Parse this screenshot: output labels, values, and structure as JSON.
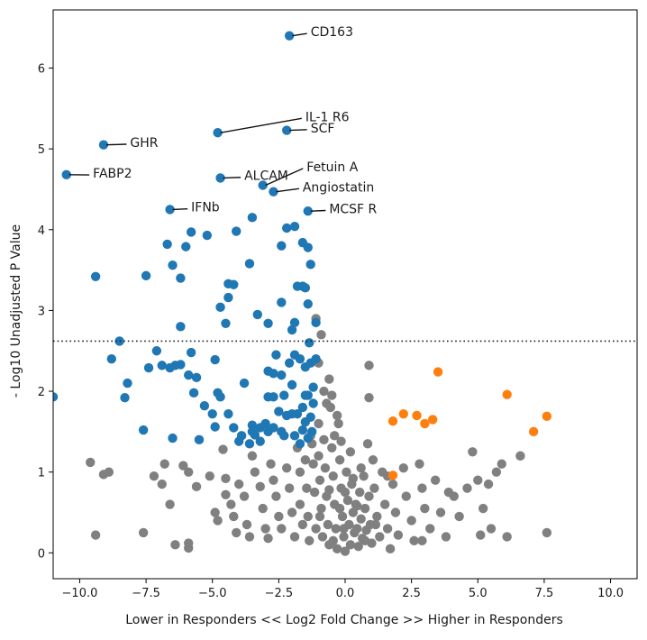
{
  "chart_data": {
    "type": "scatter",
    "title": "",
    "xlabel": "Lower in Responders << Log2 Fold Change >> Higher in Responders",
    "ylabel": "- Log10 Unadjusted P Value",
    "xlim": [
      -11,
      11
    ],
    "ylim": [
      -0.32,
      6.72
    ],
    "xticks": [
      -10,
      -7.5,
      -5,
      -2.5,
      0,
      2.5,
      5,
      7.5,
      10
    ],
    "xtick_labels": [
      "−10.0",
      "−7.5",
      "−5.0",
      "−2.5",
      "0.0",
      "2.5",
      "5.0",
      "7.5",
      "10.0"
    ],
    "yticks": [
      0,
      1,
      2,
      3,
      4,
      5,
      6
    ],
    "ytick_labels": [
      "0",
      "1",
      "2",
      "3",
      "4",
      "5",
      "6"
    ],
    "grid": false,
    "legend": null,
    "threshold_line": {
      "y": 2.62,
      "style": "dotted",
      "color": "#222222"
    },
    "colors": {
      "down": "#1f77b4",
      "up": "#ff7f0e",
      "ns": "#808080"
    },
    "series": [
      {
        "name": "ns",
        "color": "#808080",
        "points": [
          [
            -9.6,
            1.12
          ],
          [
            -9.1,
            0.97
          ],
          [
            -8.9,
            1.0
          ],
          [
            -9.4,
            0.22
          ],
          [
            -7.6,
            0.25
          ],
          [
            -7.2,
            0.95
          ],
          [
            -6.9,
            0.85
          ],
          [
            -6.8,
            1.1
          ],
          [
            -6.6,
            0.6
          ],
          [
            -6.4,
            0.1
          ],
          [
            -6.1,
            1.08
          ],
          [
            -5.9,
            1.0
          ],
          [
            -5.9,
            0.12
          ],
          [
            -5.9,
            0.06
          ],
          [
            -5.6,
            0.82
          ],
          [
            -5.1,
            0.95
          ],
          [
            -4.9,
            0.5
          ],
          [
            -4.8,
            0.4
          ],
          [
            -4.6,
            1.28
          ],
          [
            -4.5,
            0.92
          ],
          [
            -4.5,
            0.72
          ],
          [
            -4.3,
            0.6
          ],
          [
            -4.2,
            0.45
          ],
          [
            -4.1,
            0.25
          ],
          [
            -4.0,
            0.85
          ],
          [
            -3.8,
            0.7
          ],
          [
            -3.7,
            0.35
          ],
          [
            -3.6,
            0.2
          ],
          [
            -3.5,
            1.2
          ],
          [
            -3.4,
            1.0
          ],
          [
            -3.2,
            0.82
          ],
          [
            -3.1,
            0.55
          ],
          [
            -3.0,
            0.3
          ],
          [
            -2.9,
            0.18
          ],
          [
            -2.8,
            1.1
          ],
          [
            -2.7,
            0.9
          ],
          [
            -2.6,
            0.7
          ],
          [
            -2.5,
            0.45
          ],
          [
            -2.4,
            0.3
          ],
          [
            -2.2,
            1.05
          ],
          [
            -2.1,
            0.8
          ],
          [
            -2.0,
            0.5
          ],
          [
            -1.9,
            0.2
          ],
          [
            -1.8,
            1.3
          ],
          [
            -1.7,
            1.0
          ],
          [
            -1.7,
            0.6
          ],
          [
            -1.6,
            0.35
          ],
          [
            -1.5,
            1.15
          ],
          [
            -1.45,
            0.8
          ],
          [
            -1.4,
            0.45
          ],
          [
            -1.35,
            0.15
          ],
          [
            -1.3,
            1.45
          ],
          [
            -1.2,
            1.1
          ],
          [
            -1.15,
            0.75
          ],
          [
            -1.1,
            0.3
          ],
          [
            -1.0,
            1.6
          ],
          [
            -1.0,
            1.2
          ],
          [
            -0.95,
            0.9
          ],
          [
            -0.9,
            0.55
          ],
          [
            -0.85,
            0.2
          ],
          [
            -0.8,
            2.0
          ],
          [
            -0.8,
            1.4
          ],
          [
            -0.75,
            1.05
          ],
          [
            -0.7,
            0.7
          ],
          [
            -0.65,
            0.35
          ],
          [
            -0.6,
            0.1
          ],
          [
            -0.55,
            1.8
          ],
          [
            -0.5,
            1.3
          ],
          [
            -0.45,
            0.95
          ],
          [
            -0.4,
            0.6
          ],
          [
            -0.35,
            0.3
          ],
          [
            -0.3,
            0.05
          ],
          [
            -0.25,
            1.6
          ],
          [
            -0.2,
            1.15
          ],
          [
            -0.15,
            0.8
          ],
          [
            -0.1,
            0.45
          ],
          [
            -0.05,
            0.2
          ],
          [
            0.0,
            0.02
          ],
          [
            0.05,
            1.0
          ],
          [
            0.1,
            0.65
          ],
          [
            0.15,
            0.35
          ],
          [
            0.2,
            0.1
          ],
          [
            0.25,
            0.85
          ],
          [
            0.3,
            0.5
          ],
          [
            0.35,
            0.25
          ],
          [
            0.4,
            0.6
          ],
          [
            0.45,
            0.3
          ],
          [
            0.5,
            0.08
          ],
          [
            0.55,
            0.75
          ],
          [
            0.6,
            0.42
          ],
          [
            0.65,
            0.18
          ],
          [
            0.7,
            0.95
          ],
          [
            0.75,
            0.55
          ],
          [
            0.8,
            0.28
          ],
          [
            0.85,
            1.35
          ],
          [
            0.9,
            0.7
          ],
          [
            0.95,
            0.35
          ],
          [
            1.0,
            0.12
          ],
          [
            1.05,
            1.15
          ],
          [
            1.1,
            0.8
          ],
          [
            1.2,
            0.45
          ],
          [
            1.3,
            0.2
          ],
          [
            1.4,
            1.0
          ],
          [
            1.5,
            0.6
          ],
          [
            1.6,
            0.3
          ],
          [
            1.7,
            0.05
          ],
          [
            1.8,
            0.85
          ],
          [
            1.9,
            0.5
          ],
          [
            2.0,
            0.22
          ],
          [
            2.2,
            1.05
          ],
          [
            2.3,
            0.7
          ],
          [
            2.5,
            0.4
          ],
          [
            2.6,
            0.15
          ],
          [
            2.8,
            1.1
          ],
          [
            2.9,
            0.8
          ],
          [
            3.0,
            0.55
          ],
          [
            3.2,
            0.3
          ],
          [
            3.4,
            0.9
          ],
          [
            3.6,
            0.5
          ],
          [
            3.8,
            0.2
          ],
          [
            4.1,
            0.7
          ],
          [
            4.6,
            0.8
          ],
          [
            4.8,
            1.25
          ],
          [
            5.0,
            0.9
          ],
          [
            5.2,
            0.55
          ],
          [
            5.4,
            0.85
          ],
          [
            5.5,
            0.3
          ],
          [
            5.7,
            1.0
          ],
          [
            5.9,
            1.1
          ],
          [
            6.1,
            0.2
          ],
          [
            6.6,
            1.2
          ],
          [
            7.6,
            0.25
          ],
          [
            -1.0,
            2.35
          ],
          [
            -0.9,
            2.7
          ],
          [
            -1.1,
            2.9
          ],
          [
            -0.6,
            2.15
          ],
          [
            -0.3,
            1.7
          ],
          [
            -0.5,
            1.95
          ],
          [
            -0.7,
            1.85
          ],
          [
            -0.4,
            1.45
          ],
          [
            0.9,
            2.32
          ],
          [
            0.9,
            1.92
          ],
          [
            0.6,
            1.05
          ],
          [
            0.2,
            1.25
          ],
          [
            -0.15,
            1.38
          ],
          [
            0.3,
            0.92
          ],
          [
            0.0,
            0.75
          ],
          [
            -0.2,
            0.55
          ],
          [
            -0.6,
            0.78
          ],
          [
            1.15,
            0.35
          ],
          [
            0.75,
            0.15
          ],
          [
            -0.05,
            0.3
          ],
          [
            0.45,
            0.58
          ],
          [
            -0.45,
            0.15
          ],
          [
            -1.25,
            1.35
          ],
          [
            -0.95,
            0.45
          ],
          [
            1.6,
            0.95
          ],
          [
            2.9,
            0.15
          ],
          [
            3.9,
            0.75
          ],
          [
            4.3,
            0.45
          ],
          [
            5.1,
            0.22
          ]
        ]
      },
      {
        "name": "down",
        "color": "#1f77b4",
        "points": [
          [
            -2.1,
            6.4
          ],
          [
            -4.8,
            5.2
          ],
          [
            -2.2,
            5.23
          ],
          [
            -9.1,
            5.05
          ],
          [
            -10.5,
            4.68
          ],
          [
            -4.7,
            4.64
          ],
          [
            -3.1,
            4.55
          ],
          [
            -2.7,
            4.47
          ],
          [
            -6.6,
            4.25
          ],
          [
            -1.4,
            4.23
          ],
          [
            -11.0,
            1.93
          ],
          [
            -9.4,
            3.42
          ],
          [
            -7.5,
            3.43
          ],
          [
            -6.7,
            3.82
          ],
          [
            -6.5,
            3.56
          ],
          [
            -6.2,
            3.4
          ],
          [
            -5.8,
            3.97
          ],
          [
            -5.2,
            3.93
          ],
          [
            -4.1,
            3.98
          ],
          [
            -3.5,
            4.15
          ],
          [
            -2.2,
            4.02
          ],
          [
            -2.4,
            3.8
          ],
          [
            -1.9,
            4.04
          ],
          [
            -1.6,
            3.84
          ],
          [
            -1.4,
            3.78
          ],
          [
            -1.3,
            3.57
          ],
          [
            -6.0,
            3.79
          ],
          [
            -3.6,
            3.58
          ],
          [
            -4.4,
            3.33
          ],
          [
            -4.2,
            3.32
          ],
          [
            -4.4,
            3.16
          ],
          [
            -4.7,
            3.04
          ],
          [
            -4.5,
            2.84
          ],
          [
            -3.3,
            2.95
          ],
          [
            -2.9,
            2.84
          ],
          [
            -2.4,
            3.1
          ],
          [
            -1.8,
            3.3
          ],
          [
            -1.6,
            3.3
          ],
          [
            -1.5,
            3.28
          ],
          [
            -1.4,
            3.08
          ],
          [
            -1.9,
            2.85
          ],
          [
            -2.0,
            2.76
          ],
          [
            -1.1,
            2.85
          ],
          [
            -6.2,
            2.8
          ],
          [
            -8.5,
            2.62
          ],
          [
            -8.8,
            2.4
          ],
          [
            -8.2,
            2.1
          ],
          [
            -8.3,
            1.92
          ],
          [
            -7.4,
            2.29
          ],
          [
            -7.1,
            2.5
          ],
          [
            -6.9,
            2.32
          ],
          [
            -6.6,
            2.29
          ],
          [
            -6.4,
            2.32
          ],
          [
            -6.2,
            2.33
          ],
          [
            -5.8,
            2.48
          ],
          [
            -5.9,
            2.2
          ],
          [
            -5.6,
            2.17
          ],
          [
            -5.7,
            1.98
          ],
          [
            -5.3,
            1.82
          ],
          [
            -4.9,
            2.39
          ],
          [
            -4.8,
            1.98
          ],
          [
            -4.7,
            1.93
          ],
          [
            -3.8,
            2.1
          ],
          [
            -5.0,
            1.72
          ],
          [
            -4.9,
            1.56
          ],
          [
            -4.4,
            1.72
          ],
          [
            -4.2,
            1.55
          ],
          [
            -3.9,
            1.45
          ],
          [
            -3.5,
            1.58
          ],
          [
            -3.4,
            1.46
          ],
          [
            -3.2,
            1.38
          ],
          [
            -3.0,
            1.6
          ],
          [
            -2.9,
            1.93
          ],
          [
            -2.7,
            1.93
          ],
          [
            -2.9,
            2.25
          ],
          [
            -2.7,
            2.22
          ],
          [
            -2.6,
            2.45
          ],
          [
            -2.4,
            2.2
          ],
          [
            -2.3,
            1.95
          ],
          [
            -2.1,
            2.35
          ],
          [
            -1.9,
            2.45
          ],
          [
            -1.7,
            2.4
          ],
          [
            -1.5,
            2.3
          ],
          [
            -1.3,
            2.35
          ],
          [
            -1.2,
            2.05
          ],
          [
            -1.4,
            1.95
          ],
          [
            -1.6,
            1.8
          ],
          [
            -1.8,
            1.72
          ],
          [
            -2.0,
            1.72
          ],
          [
            -2.2,
            1.7
          ],
          [
            -2.5,
            1.75
          ],
          [
            -2.7,
            1.55
          ],
          [
            -2.9,
            1.5
          ],
          [
            -3.2,
            1.55
          ],
          [
            -1.5,
            1.62
          ],
          [
            -1.3,
            1.68
          ],
          [
            -1.2,
            1.85
          ],
          [
            -1.6,
            1.52
          ],
          [
            -1.9,
            1.45
          ],
          [
            -2.3,
            1.45
          ],
          [
            -3.6,
            1.35
          ],
          [
            -4.0,
            1.38
          ],
          [
            -6.5,
            1.42
          ],
          [
            -7.6,
            1.52
          ],
          [
            -5.5,
            1.4
          ],
          [
            -1.7,
            1.35
          ],
          [
            -1.4,
            1.42
          ],
          [
            -1.5,
            1.95
          ],
          [
            -1.25,
            1.5
          ],
          [
            -2.4,
            1.5
          ],
          [
            -3.5,
            1.5
          ],
          [
            -2.0,
            2.08
          ],
          [
            -1.1,
            2.4
          ],
          [
            -1.35,
            2.6
          ]
        ]
      },
      {
        "name": "up",
        "color": "#ff7f0e",
        "points": [
          [
            3.5,
            2.24
          ],
          [
            6.1,
            1.96
          ],
          [
            7.6,
            1.69
          ],
          [
            7.1,
            1.5
          ],
          [
            1.8,
            1.63
          ],
          [
            2.2,
            1.72
          ],
          [
            2.7,
            1.7
          ],
          [
            3.0,
            1.6
          ],
          [
            3.3,
            1.65
          ],
          [
            1.8,
            0.96
          ]
        ]
      }
    ],
    "annotations": [
      {
        "text": "CD163",
        "point": [
          -2.1,
          6.4
        ],
        "text_pos": [
          -1.3,
          6.45
        ]
      },
      {
        "text": "IL-1 R6",
        "point": [
          -4.8,
          5.2
        ],
        "text_pos": [
          -1.5,
          5.4
        ]
      },
      {
        "text": "SCF",
        "point": [
          -2.2,
          5.23
        ],
        "text_pos": [
          -1.3,
          5.26
        ]
      },
      {
        "text": "GHR",
        "point": [
          -9.1,
          5.05
        ],
        "text_pos": [
          -8.1,
          5.08
        ]
      },
      {
        "text": "FABP2",
        "point": [
          -10.5,
          4.68
        ],
        "text_pos": [
          -9.5,
          4.7
        ]
      },
      {
        "text": "ALCAM",
        "point": [
          -4.7,
          4.64
        ],
        "text_pos": [
          -3.8,
          4.67
        ]
      },
      {
        "text": "Fetuin A",
        "point": [
          -3.1,
          4.55
        ],
        "text_pos": [
          -1.45,
          4.78
        ]
      },
      {
        "text": "Angiostatin",
        "point": [
          -2.7,
          4.47
        ],
        "text_pos": [
          -1.6,
          4.53
        ]
      },
      {
        "text": "IFNb",
        "point": [
          -6.6,
          4.25
        ],
        "text_pos": [
          -5.8,
          4.28
        ]
      },
      {
        "text": "MCSF R",
        "point": [
          -1.4,
          4.23
        ],
        "text_pos": [
          -0.6,
          4.26
        ]
      }
    ]
  }
}
